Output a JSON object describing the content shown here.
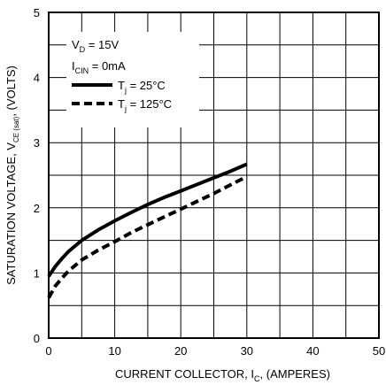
{
  "chart_data": {
    "type": "line",
    "title": "",
    "xlabel": {
      "main": "CURRENT COLLECTOR, I",
      "sub": "C",
      "tail": ", (AMPERES)"
    },
    "ylabel": {
      "main": "SATURATION VOLTAGE, V",
      "sub": "CE (sat)",
      "tail": ", (VOLTS)"
    },
    "xlim": [
      0,
      50
    ],
    "ylim": [
      0,
      5
    ],
    "x_ticks": [
      "0",
      "10",
      "20",
      "30",
      "40",
      "50"
    ],
    "y_ticks": [
      "0",
      "1",
      "2",
      "3",
      "4",
      "5"
    ],
    "grid": true,
    "conditions": [
      {
        "main": "V",
        "sub": "D",
        "tail": " = 15V"
      },
      {
        "main": "I",
        "sub": "CIN",
        "tail": " = 0mA"
      }
    ],
    "legend_position": "top-left",
    "series": [
      {
        "legend": {
          "main": "T",
          "sub": "j",
          "tail": " = 25°C"
        },
        "style": "solid",
        "color": "#000000",
        "x": [
          0,
          1,
          2,
          3,
          5,
          7.5,
          10,
          12.5,
          15,
          17.5,
          20,
          22.5,
          25,
          27.5,
          30
        ],
        "y": [
          0.95,
          1.1,
          1.22,
          1.33,
          1.5,
          1.66,
          1.8,
          1.93,
          2.05,
          2.16,
          2.26,
          2.36,
          2.46,
          2.56,
          2.67
        ]
      },
      {
        "legend": {
          "main": "T",
          "sub": "j",
          "tail": " = 125°C"
        },
        "style": "dashed",
        "color": "#000000",
        "x": [
          0,
          1,
          2,
          3,
          5,
          7.5,
          10,
          12.5,
          15,
          17.5,
          20,
          22.5,
          25,
          27.5,
          30
        ],
        "y": [
          0.62,
          0.8,
          0.92,
          1.03,
          1.2,
          1.35,
          1.48,
          1.62,
          1.74,
          1.86,
          1.98,
          2.1,
          2.22,
          2.35,
          2.48
        ]
      }
    ]
  }
}
